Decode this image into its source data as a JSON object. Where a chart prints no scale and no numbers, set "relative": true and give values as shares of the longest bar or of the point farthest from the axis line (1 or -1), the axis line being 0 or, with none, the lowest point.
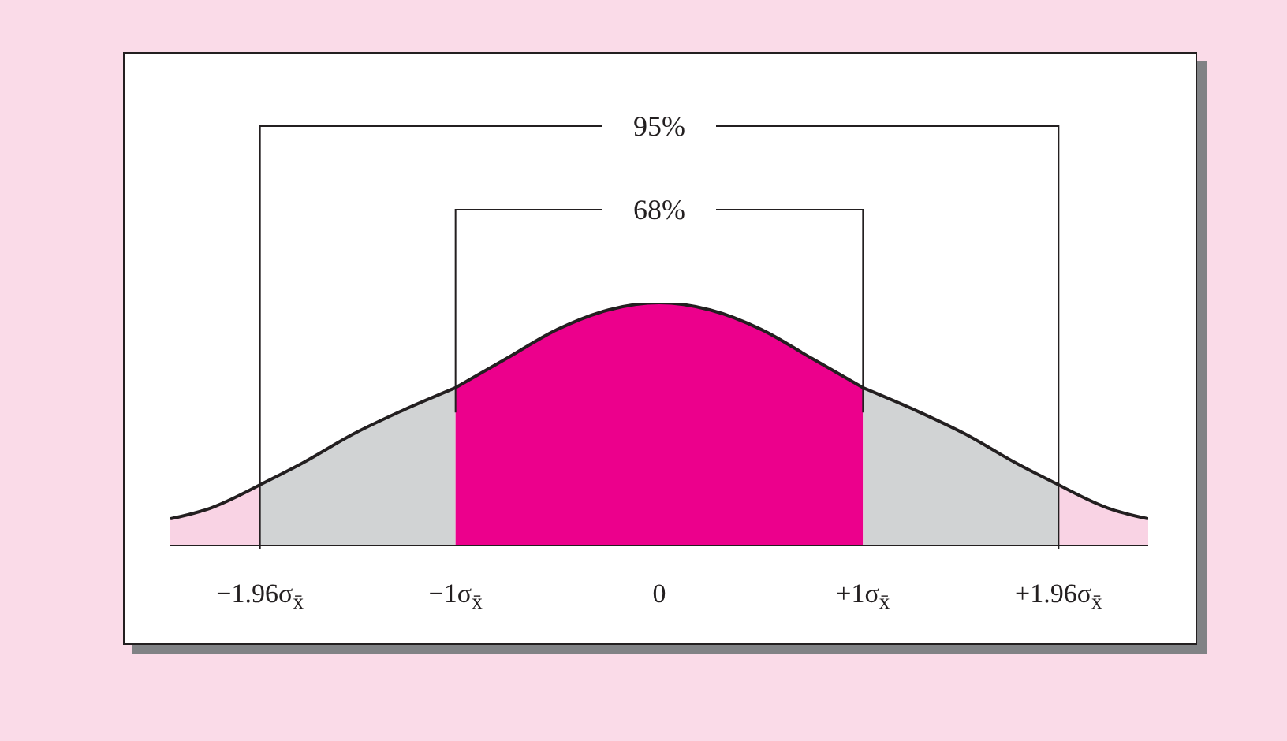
{
  "chart_data": {
    "type": "area",
    "relative": true,
    "xlim": [
      -2.4,
      2.4
    ],
    "xticks": [
      {
        "value": -1.96,
        "label": "−1.96σ$_{x̄}$"
      },
      {
        "value": -1,
        "label": "−1σ$_{x̄}$"
      },
      0,
      {
        "value": 1,
        "label": "+1σ$_{x̄}$"
      },
      {
        "value": 1.96,
        "label": "+1.96σ$_{x̄}$"
      }
    ],
    "series": [
      {
        "color": "#f9d3e4",
        "x": [
          -2.4,
          -2.2,
          -1.96
        ],
        "values": [
          0.11,
          0.155,
          0.25
        ]
      },
      {
        "color": "#d1d3d4",
        "x": [
          -1.96,
          -1.75,
          -1.5,
          -1.25,
          -1
        ],
        "values": [
          0.25,
          0.34,
          0.46,
          0.56,
          0.65
        ]
      },
      {
        "color": "#ec008c",
        "x": [
          -1,
          -0.75,
          -0.5,
          -0.25,
          0,
          0.25,
          0.5,
          0.75,
          1
        ],
        "values": [
          0.65,
          0.77,
          0.89,
          0.97,
          1,
          0.97,
          0.89,
          0.77,
          0.65
        ]
      },
      {
        "color": "#d1d3d4",
        "x": [
          1,
          1.25,
          1.5,
          1.75,
          1.96
        ],
        "values": [
          0.65,
          0.56,
          0.46,
          0.34,
          0.25
        ]
      },
      {
        "color": "#f9d3e4",
        "x": [
          1.96,
          2.2,
          2.4
        ],
        "values": [
          0.25,
          0.155,
          0.11
        ]
      }
    ],
    "annotations": [
      "95%",
      "68%"
    ]
  }
}
